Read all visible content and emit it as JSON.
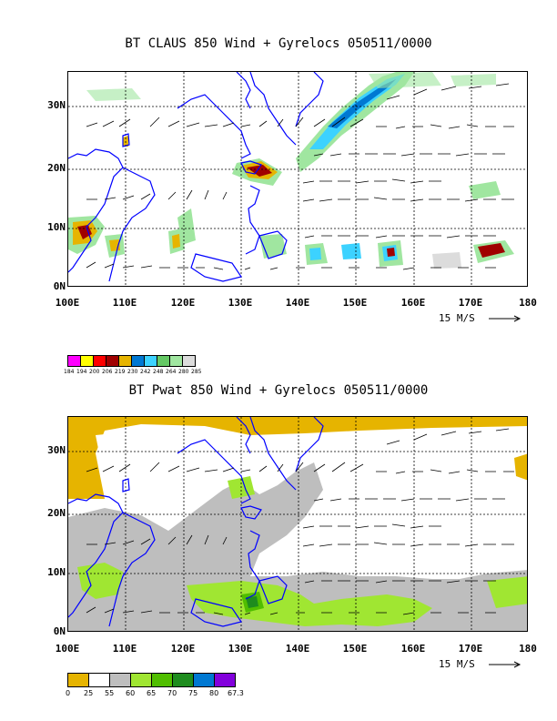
{
  "panels": {
    "top": {
      "title": "BT CLAUS 850 Wind + Gyrelocs 050511/0000",
      "y_ticks": [
        "30N",
        "20N",
        "10N",
        "0N"
      ],
      "x_ticks": [
        "100E",
        "110E",
        "120E",
        "130E",
        "140E",
        "150E",
        "160E",
        "170E",
        "180"
      ],
      "ref_vector": "15 M/S",
      "colorbar": {
        "colors": [
          "#ff00ff",
          "#ffff00",
          "#ff0000",
          "#a00000",
          "#e6b400",
          "#0078d2",
          "#3cd2ff",
          "#64c864",
          "#a0e6a0",
          "#dcdcdc"
        ],
        "ticks": [
          "184",
          "194",
          "200",
          "206",
          "219",
          "230",
          "242",
          "248",
          "264",
          "280",
          "285"
        ]
      }
    },
    "bottom": {
      "title": "BT Pwat 850 Wind + Gyrelocs 050511/0000",
      "y_ticks": [
        "30N",
        "20N",
        "10N",
        "0N"
      ],
      "x_ticks": [
        "100E",
        "110E",
        "120E",
        "130E",
        "140E",
        "150E",
        "160E",
        "170E",
        "180"
      ],
      "ref_vector": "15 M/S",
      "colorbar": {
        "colors": [
          "#e6b400",
          "#ffffff",
          "#bebebe",
          "#a0e632",
          "#50be00",
          "#1e8c1e",
          "#0078d2",
          "#8200dc"
        ],
        "ticks": [
          "0",
          "25",
          "55",
          "60",
          "65",
          "70",
          "75",
          "80",
          "67.3"
        ]
      }
    }
  }
}
